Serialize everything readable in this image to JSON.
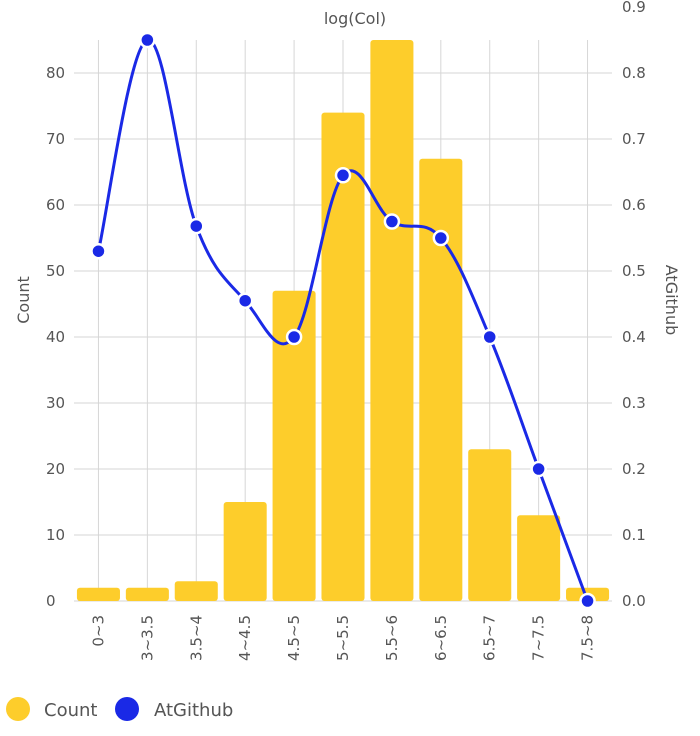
{
  "chart_data": {
    "type": "bar+line",
    "title": "log(Col)",
    "categories": [
      "0~3",
      "3~3.5",
      "3.5~4",
      "4~4.5",
      "4.5~5",
      "5~5.5",
      "5.5~6",
      "6~6.5",
      "6.5~7",
      "7~7.5",
      "7.5~8"
    ],
    "y_left": {
      "label": "Count",
      "ylim": [
        0,
        85
      ],
      "ticks": [
        0,
        10,
        20,
        30,
        40,
        50,
        60,
        70,
        80
      ]
    },
    "y_right": {
      "label": "AtGithub",
      "ylim": [
        0,
        0.85
      ],
      "ticks": [
        "0.0",
        "0.1",
        "0.2",
        "0.3",
        "0.4",
        "0.5",
        "0.6",
        "0.7",
        "0.8",
        "0.9"
      ]
    },
    "grid": true,
    "legend_position": "bottom-left",
    "series": [
      {
        "name": "Count",
        "kind": "bar",
        "axis": "left",
        "color": "#FDCD2B",
        "values": [
          2,
          2,
          3,
          15,
          47,
          74,
          85,
          67,
          23,
          13,
          2
        ]
      },
      {
        "name": "AtGithub",
        "kind": "line",
        "axis": "right",
        "color": "#1A29E6",
        "values": [
          0.53,
          0.85,
          0.568,
          0.455,
          0.4,
          0.645,
          0.575,
          0.55,
          0.4,
          0.2,
          0.0
        ]
      }
    ]
  }
}
